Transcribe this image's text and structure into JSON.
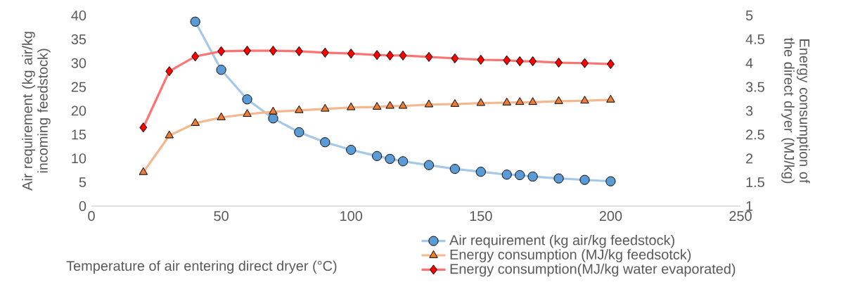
{
  "chart_data": {
    "type": "line",
    "xlabel": "Temperature of air entering direct dryer (°C)",
    "ylabel": "Air requirement (kg air/kg incoming feedstock)",
    "y2label": "Energy consumption of the direct dryer (MJ/kg)",
    "xlim": [
      0,
      250
    ],
    "xticks": [
      0,
      50,
      100,
      150,
      200,
      250
    ],
    "ylim": [
      0,
      40
    ],
    "yticks": [
      0,
      5,
      10,
      15,
      20,
      25,
      30,
      35,
      40
    ],
    "y2lim": [
      1,
      5
    ],
    "y2ticks": [
      1,
      1.5,
      2,
      2.5,
      3,
      3.5,
      4,
      4.5,
      5
    ],
    "grid": false,
    "legend": "bottom right",
    "series": [
      {
        "name": "Air requirement (kg air/kg feedstock)",
        "color": "#5b9bd5",
        "marker": "circle",
        "x": [
          40,
          50,
          60,
          70,
          80,
          90,
          100,
          110,
          115,
          120,
          130,
          140,
          150,
          160,
          165,
          170,
          180,
          190,
          200
        ],
        "values": [
          38.7,
          28.6,
          22.4,
          18.4,
          15.5,
          13.4,
          11.8,
          10.5,
          9.9,
          9.4,
          8.6,
          7.8,
          7.2,
          6.6,
          6.5,
          6.2,
          5.8,
          5.5,
          5.2
        ]
      },
      {
        "name": "Energy consumption (MJ/kg feedsotck)",
        "color": "#ed7d31",
        "marker": "triangle",
        "axis": "y2",
        "x": [
          20,
          30,
          40,
          50,
          60,
          70,
          80,
          90,
          100,
          110,
          115,
          120,
          130,
          140,
          150,
          160,
          165,
          170,
          180,
          190,
          200
        ],
        "values": [
          1.71,
          2.48,
          2.74,
          2.86,
          2.93,
          2.98,
          3.01,
          3.04,
          3.07,
          3.08,
          3.1,
          3.1,
          3.13,
          3.14,
          3.16,
          3.17,
          3.18,
          3.18,
          3.2,
          3.21,
          3.23
        ]
      },
      {
        "name": "Energy consumption(MJ/kg water evaporated)",
        "color": "#ff0000",
        "marker": "diamond",
        "axis": "y2",
        "x": [
          20,
          30,
          40,
          50,
          60,
          70,
          80,
          90,
          100,
          110,
          115,
          120,
          130,
          140,
          150,
          160,
          165,
          170,
          180,
          190,
          200
        ],
        "values": [
          2.65,
          3.83,
          4.14,
          4.25,
          4.26,
          4.26,
          4.25,
          4.22,
          4.2,
          4.17,
          4.16,
          4.16,
          4.13,
          4.1,
          4.07,
          4.06,
          4.04,
          4.04,
          4.01,
          4.0,
          3.98
        ]
      }
    ]
  }
}
